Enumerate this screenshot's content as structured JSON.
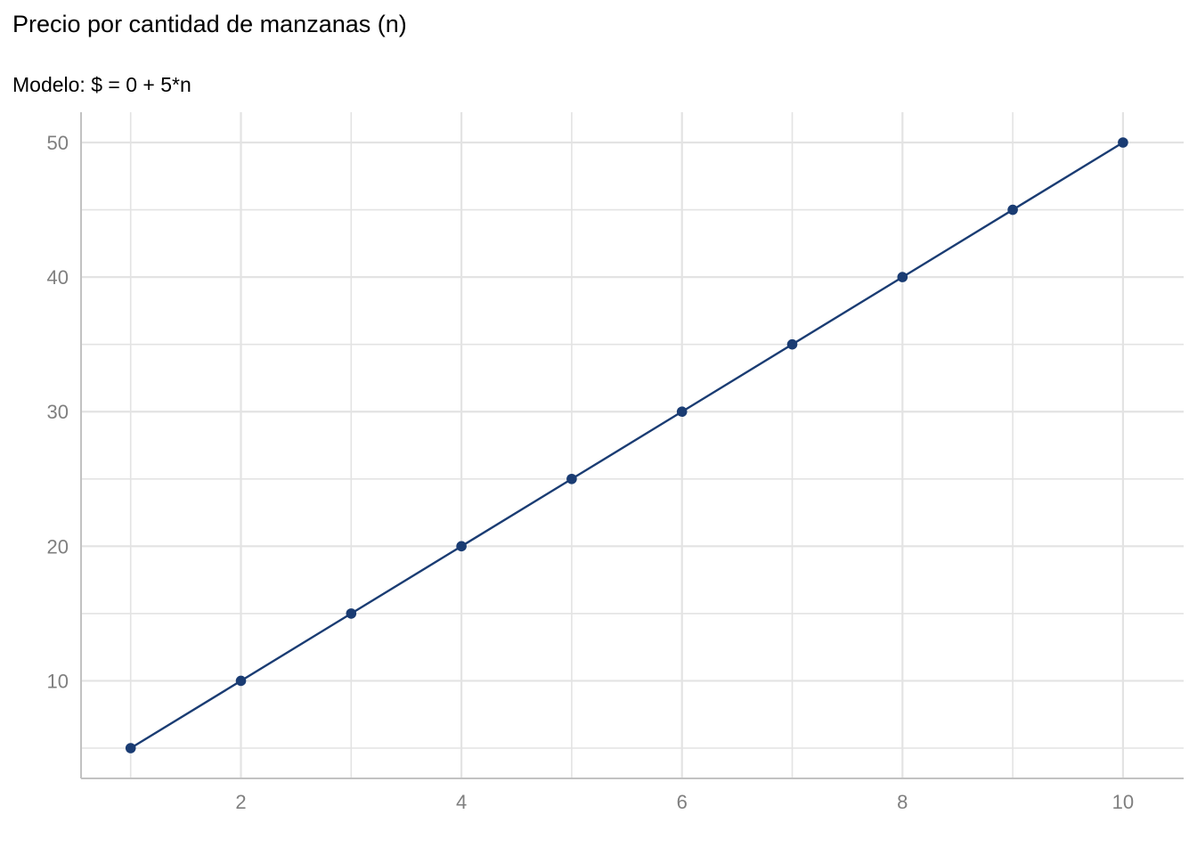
{
  "chart_data": {
    "type": "line",
    "title": "Precio por cantidad de manzanas (n)",
    "subtitle": "Modelo: $ = 0 + 5*n",
    "xlabel": "",
    "ylabel": "",
    "x": [
      1,
      2,
      3,
      4,
      5,
      6,
      7,
      8,
      9,
      10
    ],
    "series": [
      {
        "values": [
          5,
          10,
          15,
          20,
          25,
          30,
          35,
          40,
          45,
          50
        ]
      }
    ],
    "xlim": [
      0.55,
      10.55
    ],
    "ylim": [
      2.75,
      52.25
    ],
    "x_ticks": [
      "2",
      "4",
      "6",
      "8",
      "10"
    ],
    "y_ticks": [
      "10",
      "20",
      "30",
      "40",
      "50"
    ],
    "grid": true,
    "legend": "none",
    "colors": {
      "line": "#1a3c73",
      "point": "#1a3c73",
      "grid": "#e3e3e3",
      "axis": "#c2c2c2",
      "tick_label": "#7f7f7f"
    }
  }
}
